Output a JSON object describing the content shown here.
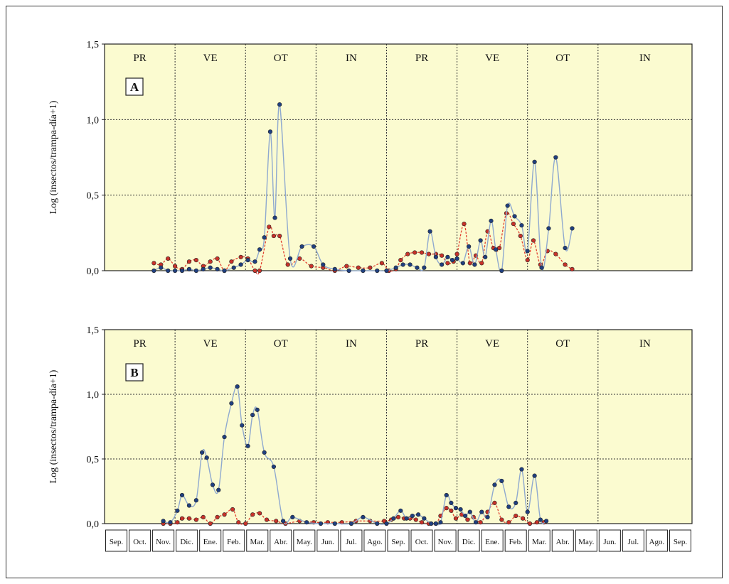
{
  "colors": {
    "plot_background": "#fbfbd0",
    "series_blue_line": "#8fa9cf",
    "series_blue_marker": "#1f3f80",
    "series_red_line": "#e14030",
    "series_red_marker": "#c8322a"
  },
  "month_axis": {
    "labels": [
      "Sep.",
      "Oct.",
      "Nov.",
      "Dic.",
      "Ene.",
      "Feb.",
      "Mar.",
      "Abr.",
      "May.",
      "Jun.",
      "Jul.",
      "Ago.",
      "Sep.",
      "Oct.",
      "Nov.",
      "Dic.",
      "Ene.",
      "Feb.",
      "Mar.",
      "Abr.",
      "May.",
      "Jun.",
      "Jul.",
      "Ago.",
      "Sep."
    ]
  },
  "chart_data": [
    {
      "type": "line",
      "panel_label": "A",
      "ylabel": "Log (insectos/trampa-día+1)",
      "ylim": [
        0,
        1.5
      ],
      "yticks": [
        "0,0",
        "0,5",
        "1,0",
        "1,5"
      ],
      "xlim": [
        0,
        25
      ],
      "seasons": [
        {
          "label": "PR",
          "start": 0,
          "end": 3
        },
        {
          "label": "VE",
          "start": 3,
          "end": 6
        },
        {
          "label": "OT",
          "start": 6,
          "end": 9
        },
        {
          "label": "IN",
          "start": 9,
          "end": 12
        },
        {
          "label": "PR",
          "start": 12,
          "end": 15
        },
        {
          "label": "VE",
          "start": 15,
          "end": 18
        },
        {
          "label": "OT",
          "start": 18,
          "end": 21
        },
        {
          "label": "IN",
          "start": 21,
          "end": 25
        }
      ],
      "series": [
        {
          "style": "blue-solid",
          "points": [
            [
              2.1,
              0.0
            ],
            [
              2.4,
              0.02
            ],
            [
              2.7,
              0.0
            ],
            [
              3.0,
              0.0
            ],
            [
              3.3,
              0.0
            ],
            [
              3.6,
              0.01
            ],
            [
              3.9,
              0.0
            ],
            [
              4.2,
              0.01
            ],
            [
              4.5,
              0.02
            ],
            [
              4.8,
              0.01
            ],
            [
              5.1,
              0.0
            ],
            [
              5.5,
              0.02
            ],
            [
              5.8,
              0.04
            ],
            [
              6.1,
              0.07
            ],
            [
              6.4,
              0.06
            ],
            [
              6.6,
              0.14
            ],
            [
              6.8,
              0.22
            ],
            [
              7.05,
              0.92
            ],
            [
              7.25,
              0.35
            ],
            [
              7.45,
              1.1
            ],
            [
              7.9,
              0.08
            ],
            [
              8.4,
              0.16
            ],
            [
              8.9,
              0.16
            ],
            [
              9.3,
              0.04
            ],
            [
              9.8,
              0.01
            ],
            [
              10.4,
              0.0
            ],
            [
              11.0,
              0.0
            ],
            [
              11.6,
              0.0
            ],
            [
              12.0,
              0.0
            ],
            [
              12.4,
              0.02
            ],
            [
              12.7,
              0.04
            ],
            [
              13.0,
              0.04
            ],
            [
              13.3,
              0.02
            ],
            [
              13.6,
              0.02
            ],
            [
              13.85,
              0.26
            ],
            [
              14.1,
              0.09
            ],
            [
              14.35,
              0.04
            ],
            [
              14.6,
              0.09
            ],
            [
              14.8,
              0.07
            ],
            [
              15.0,
              0.08
            ],
            [
              15.25,
              0.05
            ],
            [
              15.5,
              0.16
            ],
            [
              15.75,
              0.04
            ],
            [
              16.0,
              0.2
            ],
            [
              16.2,
              0.09
            ],
            [
              16.45,
              0.33
            ],
            [
              16.65,
              0.14
            ],
            [
              16.9,
              0.0
            ],
            [
              17.15,
              0.43
            ],
            [
              17.45,
              0.36
            ],
            [
              17.75,
              0.3
            ],
            [
              18.0,
              0.13
            ],
            [
              18.3,
              0.72
            ],
            [
              18.6,
              0.02
            ],
            [
              18.9,
              0.28
            ],
            [
              19.2,
              0.75
            ],
            [
              19.6,
              0.15
            ],
            [
              19.9,
              0.28
            ]
          ]
        },
        {
          "style": "red-dashed",
          "points": [
            [
              2.1,
              0.05
            ],
            [
              2.4,
              0.04
            ],
            [
              2.7,
              0.08
            ],
            [
              3.0,
              0.03
            ],
            [
              3.3,
              0.01
            ],
            [
              3.6,
              0.06
            ],
            [
              3.9,
              0.07
            ],
            [
              4.2,
              0.03
            ],
            [
              4.5,
              0.06
            ],
            [
              4.8,
              0.08
            ],
            [
              5.1,
              0.0
            ],
            [
              5.4,
              0.06
            ],
            [
              5.8,
              0.09
            ],
            [
              6.1,
              0.08
            ],
            [
              6.4,
              0.0
            ],
            [
              6.6,
              0.0
            ],
            [
              7.0,
              0.29
            ],
            [
              7.2,
              0.23
            ],
            [
              7.45,
              0.23
            ],
            [
              7.8,
              0.04
            ],
            [
              8.3,
              0.08
            ],
            [
              8.8,
              0.03
            ],
            [
              9.3,
              0.02
            ],
            [
              9.8,
              0.0
            ],
            [
              10.3,
              0.03
            ],
            [
              10.8,
              0.02
            ],
            [
              11.3,
              0.02
            ],
            [
              11.8,
              0.05
            ],
            [
              12.1,
              0.0
            ],
            [
              12.4,
              0.01
            ],
            [
              12.6,
              0.07
            ],
            [
              12.9,
              0.11
            ],
            [
              13.2,
              0.12
            ],
            [
              13.5,
              0.12
            ],
            [
              13.8,
              0.11
            ],
            [
              14.1,
              0.11
            ],
            [
              14.35,
              0.1
            ],
            [
              14.6,
              0.05
            ],
            [
              14.85,
              0.06
            ],
            [
              15.0,
              0.11
            ],
            [
              15.3,
              0.31
            ],
            [
              15.55,
              0.05
            ],
            [
              15.8,
              0.1
            ],
            [
              16.05,
              0.05
            ],
            [
              16.3,
              0.26
            ],
            [
              16.55,
              0.15
            ],
            [
              16.8,
              0.15
            ],
            [
              17.1,
              0.38
            ],
            [
              17.4,
              0.31
            ],
            [
              17.7,
              0.23
            ],
            [
              18.0,
              0.07
            ],
            [
              18.25,
              0.2
            ],
            [
              18.55,
              0.04
            ],
            [
              18.85,
              0.13
            ],
            [
              19.2,
              0.11
            ],
            [
              19.6,
              0.04
            ],
            [
              19.9,
              0.01
            ]
          ]
        }
      ]
    },
    {
      "type": "line",
      "panel_label": "B",
      "ylabel": "Log (insectos/trampa-día+1)",
      "ylim": [
        0,
        1.5
      ],
      "yticks": [
        "0,0",
        "0,5",
        "1,0",
        "1,5"
      ],
      "xlim": [
        0,
        25
      ],
      "seasons": [
        {
          "label": "PR",
          "start": 0,
          "end": 3
        },
        {
          "label": "VE",
          "start": 3,
          "end": 6
        },
        {
          "label": "OT",
          "start": 6,
          "end": 9
        },
        {
          "label": "IN",
          "start": 9,
          "end": 12
        },
        {
          "label": "PR",
          "start": 12,
          "end": 15
        },
        {
          "label": "VE",
          "start": 15,
          "end": 18
        },
        {
          "label": "OT",
          "start": 18,
          "end": 21
        },
        {
          "label": "IN",
          "start": 21,
          "end": 25
        }
      ],
      "series": [
        {
          "style": "blue-solid",
          "points": [
            [
              2.5,
              0.02
            ],
            [
              2.8,
              0.01
            ],
            [
              3.1,
              0.1
            ],
            [
              3.3,
              0.22
            ],
            [
              3.6,
              0.14
            ],
            [
              3.9,
              0.18
            ],
            [
              4.15,
              0.55
            ],
            [
              4.35,
              0.51
            ],
            [
              4.6,
              0.3
            ],
            [
              4.85,
              0.26
            ],
            [
              5.1,
              0.67
            ],
            [
              5.4,
              0.93
            ],
            [
              5.65,
              1.06
            ],
            [
              5.85,
              0.76
            ],
            [
              6.1,
              0.6
            ],
            [
              6.3,
              0.84
            ],
            [
              6.5,
              0.88
            ],
            [
              6.8,
              0.55
            ],
            [
              7.2,
              0.44
            ],
            [
              7.6,
              0.02
            ],
            [
              8.0,
              0.05
            ],
            [
              8.6,
              0.01
            ],
            [
              9.2,
              0.0
            ],
            [
              9.8,
              0.0
            ],
            [
              10.5,
              0.0
            ],
            [
              11.0,
              0.05
            ],
            [
              11.6,
              0.0
            ],
            [
              12.0,
              0.0
            ],
            [
              12.3,
              0.04
            ],
            [
              12.6,
              0.1
            ],
            [
              12.85,
              0.04
            ],
            [
              13.1,
              0.06
            ],
            [
              13.35,
              0.07
            ],
            [
              13.6,
              0.04
            ],
            [
              13.9,
              0.0
            ],
            [
              14.1,
              0.0
            ],
            [
              14.3,
              0.01
            ],
            [
              14.55,
              0.22
            ],
            [
              14.75,
              0.16
            ],
            [
              14.95,
              0.12
            ],
            [
              15.15,
              0.11
            ],
            [
              15.35,
              0.06
            ],
            [
              15.55,
              0.09
            ],
            [
              15.8,
              0.01
            ],
            [
              16.05,
              0.09
            ],
            [
              16.3,
              0.05
            ],
            [
              16.6,
              0.3
            ],
            [
              16.9,
              0.33
            ],
            [
              17.2,
              0.13
            ],
            [
              17.5,
              0.16
            ],
            [
              17.75,
              0.42
            ],
            [
              18.0,
              0.09
            ],
            [
              18.3,
              0.37
            ],
            [
              18.55,
              0.03
            ],
            [
              18.8,
              0.02
            ]
          ]
        },
        {
          "style": "red-dashed",
          "points": [
            [
              2.5,
              0.0
            ],
            [
              2.8,
              0.0
            ],
            [
              3.1,
              0.01
            ],
            [
              3.3,
              0.04
            ],
            [
              3.6,
              0.04
            ],
            [
              3.9,
              0.03
            ],
            [
              4.2,
              0.05
            ],
            [
              4.5,
              0.0
            ],
            [
              4.8,
              0.05
            ],
            [
              5.1,
              0.07
            ],
            [
              5.45,
              0.11
            ],
            [
              5.7,
              0.01
            ],
            [
              6.0,
              0.0
            ],
            [
              6.3,
              0.07
            ],
            [
              6.6,
              0.08
            ],
            [
              6.9,
              0.03
            ],
            [
              7.3,
              0.02
            ],
            [
              7.7,
              0.0
            ],
            [
              8.3,
              0.02
            ],
            [
              8.9,
              0.01
            ],
            [
              9.5,
              0.01
            ],
            [
              10.1,
              0.01
            ],
            [
              10.7,
              0.02
            ],
            [
              11.3,
              0.02
            ],
            [
              11.9,
              0.02
            ],
            [
              12.2,
              0.03
            ],
            [
              12.5,
              0.05
            ],
            [
              12.75,
              0.04
            ],
            [
              13.0,
              0.04
            ],
            [
              13.25,
              0.03
            ],
            [
              13.5,
              0.01
            ],
            [
              13.8,
              0.0
            ],
            [
              14.1,
              0.0
            ],
            [
              14.3,
              0.06
            ],
            [
              14.55,
              0.12
            ],
            [
              14.75,
              0.1
            ],
            [
              14.95,
              0.04
            ],
            [
              15.2,
              0.07
            ],
            [
              15.45,
              0.03
            ],
            [
              15.7,
              0.05
            ],
            [
              16.0,
              0.01
            ],
            [
              16.3,
              0.09
            ],
            [
              16.6,
              0.16
            ],
            [
              16.9,
              0.03
            ],
            [
              17.2,
              0.01
            ],
            [
              17.5,
              0.06
            ],
            [
              17.8,
              0.04
            ],
            [
              18.1,
              0.0
            ],
            [
              18.4,
              0.01
            ],
            [
              18.7,
              0.01
            ]
          ]
        }
      ]
    }
  ]
}
